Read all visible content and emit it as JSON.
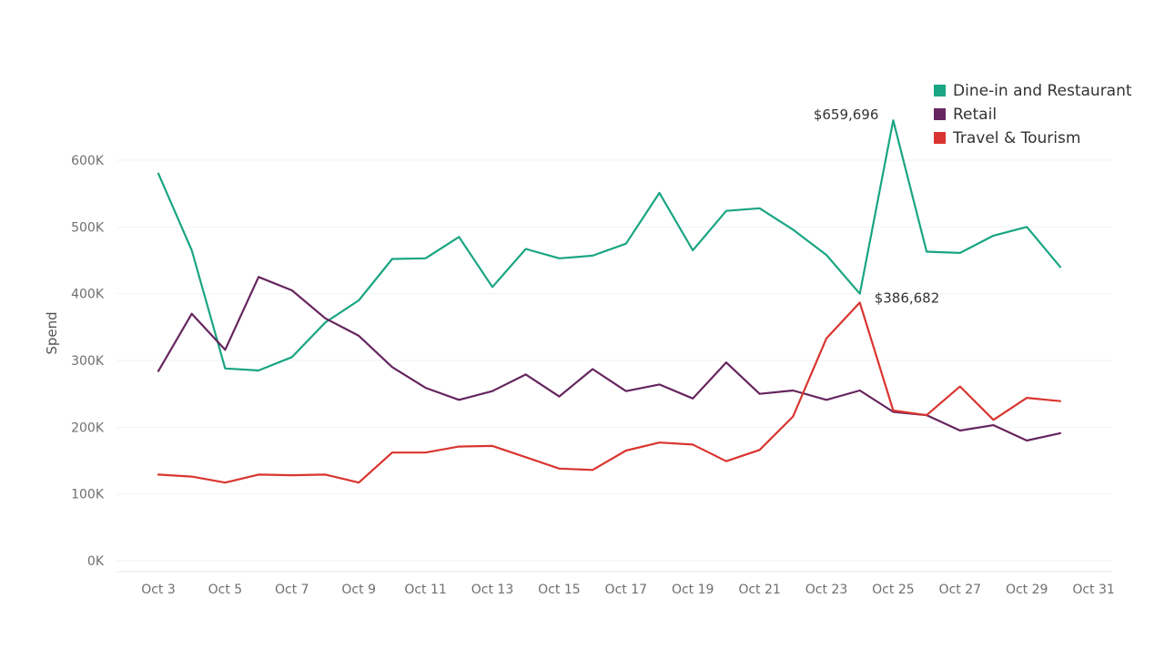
{
  "chart_data": {
    "type": "line",
    "ylabel": "Spend",
    "xlabel": "",
    "ylim": [
      0,
      690000
    ],
    "yticks": [
      {
        "value": 0,
        "label": "0K"
      },
      {
        "value": 100000,
        "label": "100K"
      },
      {
        "value": 200000,
        "label": "200K"
      },
      {
        "value": 300000,
        "label": "300K"
      },
      {
        "value": 400000,
        "label": "400K"
      },
      {
        "value": 500000,
        "label": "500K"
      },
      {
        "value": 600000,
        "label": "600K"
      }
    ],
    "x": [
      "Oct 3",
      "Oct 4",
      "Oct 5",
      "Oct 6",
      "Oct 7",
      "Oct 8",
      "Oct 9",
      "Oct 10",
      "Oct 11",
      "Oct 12",
      "Oct 13",
      "Oct 14",
      "Oct 15",
      "Oct 16",
      "Oct 17",
      "Oct 18",
      "Oct 19",
      "Oct 20",
      "Oct 21",
      "Oct 22",
      "Oct 23",
      "Oct 24",
      "Oct 25",
      "Oct 26",
      "Oct 27",
      "Oct 28",
      "Oct 29",
      "Oct 30"
    ],
    "xticks": [
      "Oct 3",
      "Oct 5",
      "Oct 7",
      "Oct 9",
      "Oct 11",
      "Oct 13",
      "Oct 15",
      "Oct 17",
      "Oct 19",
      "Oct 21",
      "Oct 23",
      "Oct 25",
      "Oct 27",
      "Oct 29",
      "Oct 31"
    ],
    "grid": true,
    "legend_position": "top-right",
    "series": [
      {
        "name": "Dine-in and Restaurant",
        "color": "#1aa583",
        "values": [
          580000,
          465000,
          288000,
          285000,
          305000,
          357000,
          390000,
          452000,
          453000,
          485000,
          410000,
          467000,
          453000,
          457000,
          475000,
          551000,
          465000,
          524000,
          528000,
          496000,
          458000,
          400000,
          659696,
          463000,
          461000,
          487000,
          500000,
          440000
        ]
      },
      {
        "name": "Retail",
        "color": "#66255f",
        "values": [
          284000,
          370000,
          316000,
          425000,
          405000,
          363000,
          337000,
          290000,
          259000,
          241000,
          254000,
          279000,
          246000,
          287000,
          254000,
          264000,
          243000,
          297000,
          250000,
          255000,
          241000,
          255000,
          223000,
          218000,
          195000,
          203000,
          180000,
          191000
        ]
      },
      {
        "name": "Travel & Tourism",
        "color": "#d93530",
        "values": [
          129000,
          126000,
          117000,
          129000,
          128000,
          129000,
          117000,
          162000,
          162000,
          171000,
          172000,
          155000,
          138000,
          136000,
          165000,
          177000,
          174000,
          149000,
          166000,
          216000,
          333000,
          386682,
          225000,
          218000,
          261000,
          211000,
          244000,
          239000
        ]
      }
    ],
    "annotations": [
      {
        "series": 0,
        "index": 22,
        "text": "$659,696"
      },
      {
        "series": 2,
        "index": 21,
        "text": "$386,682"
      }
    ]
  }
}
